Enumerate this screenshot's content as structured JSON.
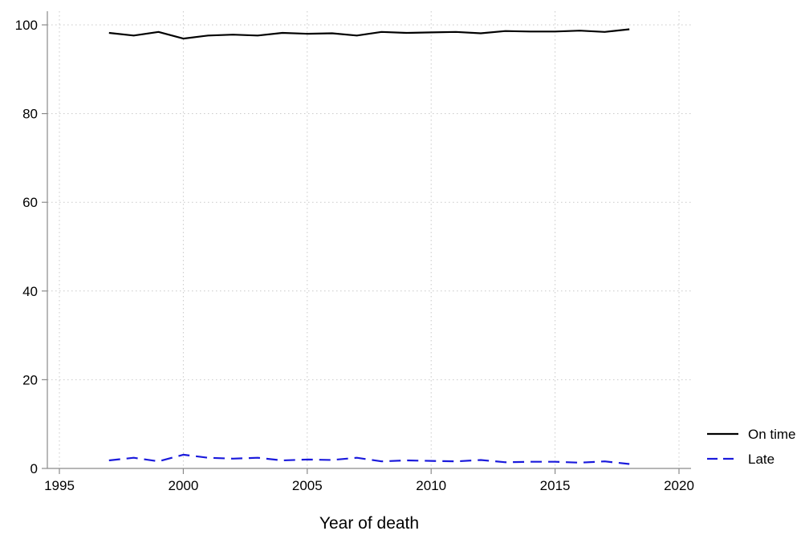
{
  "chart_data": {
    "type": "line",
    "title": "",
    "xlabel": "Year of death",
    "ylabel": "",
    "xlim": [
      1995,
      2020
    ],
    "ylim": [
      0,
      100
    ],
    "x_ticks": [
      1995,
      2000,
      2005,
      2010,
      2015,
      2020
    ],
    "y_ticks": [
      0,
      20,
      40,
      60,
      80,
      100
    ],
    "grid": true,
    "legend_position": "right",
    "x": [
      1997,
      1998,
      1999,
      2000,
      2001,
      2002,
      2003,
      2004,
      2005,
      2006,
      2007,
      2008,
      2009,
      2010,
      2011,
      2012,
      2013,
      2014,
      2015,
      2016,
      2017,
      2018
    ],
    "series": [
      {
        "name": "On time",
        "color": "#000000",
        "style": "solid",
        "values": [
          98.2,
          97.6,
          98.4,
          96.9,
          97.6,
          97.8,
          97.6,
          98.2,
          98.0,
          98.1,
          97.6,
          98.4,
          98.2,
          98.3,
          98.4,
          98.1,
          98.6,
          98.5,
          98.5,
          98.7,
          98.4,
          99.0
        ]
      },
      {
        "name": "Late",
        "color": "#1a1adc",
        "style": "dashed",
        "values": [
          1.8,
          2.4,
          1.6,
          3.1,
          2.4,
          2.2,
          2.4,
          1.8,
          2.0,
          1.9,
          2.4,
          1.6,
          1.8,
          1.7,
          1.6,
          1.9,
          1.4,
          1.5,
          1.5,
          1.3,
          1.6,
          1.0
        ]
      }
    ]
  }
}
